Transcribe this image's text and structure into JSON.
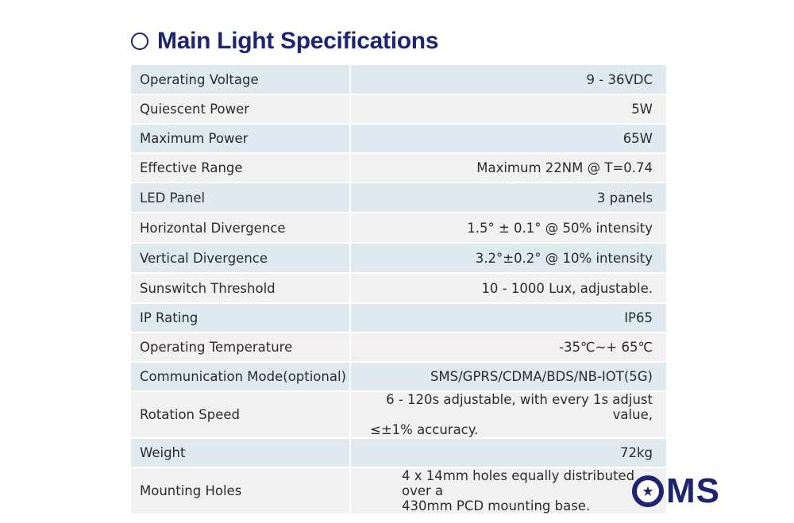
{
  "header": {
    "title": "Main Light Specifications"
  },
  "specs": [
    {
      "label": "Operating Voltage",
      "value": "9 - 36VDC"
    },
    {
      "label": "Quiescent Power",
      "value": "5W"
    },
    {
      "label": "Maximum Power",
      "value": "65W"
    },
    {
      "label": "Effective Range",
      "value": "Maximum 22NM @ T=0.74"
    },
    {
      "label": "LED Panel",
      "value": "3 panels"
    },
    {
      "label": "Horizontal Divergence",
      "value": "1.5° ± 0.1° @ 50% intensity"
    },
    {
      "label": "Vertical Divergence",
      "value": "3.2°±0.2° @ 10% intensity"
    },
    {
      "label": "Sunswitch Threshold",
      "value": "10 - 1000 Lux, adjustable."
    },
    {
      "label": "IP Rating",
      "value": "IP65"
    },
    {
      "label": "Operating Temperature",
      "value": "-35℃~+ 65℃"
    },
    {
      "label": "Communication Mode(optional)",
      "value": "SMS/GPRS/CDMA/BDS/NB-IOT(5G)"
    },
    {
      "label": "Rotation Speed",
      "value_line1": "6 - 120s adjustable, with every 1s adjust value,",
      "value_line2": "≤±1% accuracy."
    },
    {
      "label": "Weight",
      "value": "72kg"
    },
    {
      "label": "Mounting Holes",
      "value_line1": "4 x 14mm holes equally distributed over a",
      "value_line2": "430mm PCD mounting base."
    }
  ],
  "logo": {
    "text": "MS",
    "icon": "star-icon"
  },
  "colors": {
    "brand": "#1f2470",
    "row_blue": "#dfeaf0",
    "row_grey": "#f1f1f1"
  }
}
